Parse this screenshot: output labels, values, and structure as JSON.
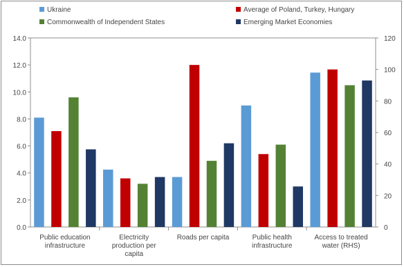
{
  "chart_data": {
    "type": "bar",
    "categories": [
      [
        "Public education",
        "infrastructure"
      ],
      [
        "Electricity",
        "production per",
        "capita"
      ],
      [
        "Roads per capita"
      ],
      [
        "Public health",
        "infrastructure"
      ],
      [
        "Access to treated",
        "water (RHS)"
      ]
    ],
    "series": [
      {
        "name": "Ukraine",
        "color": "#5B9BD5",
        "values": [
          8.1,
          4.25,
          3.7,
          9.0,
          98
        ]
      },
      {
        "name": "Average of Poland, Turkey, Hungary",
        "color": "#C00000",
        "values": [
          7.1,
          3.6,
          12.0,
          5.4,
          100
        ]
      },
      {
        "name": "Commonwealth of Independent States",
        "color": "#548235",
        "values": [
          9.6,
          3.2,
          4.9,
          6.1,
          90
        ]
      },
      {
        "name": "Emerging Market Economies",
        "color": "#1F3864",
        "values": [
          5.75,
          3.7,
          6.2,
          3.0,
          93
        ]
      }
    ],
    "rhs_category_index": 4,
    "ylim_left": [
      0,
      14
    ],
    "ylim_right": [
      0,
      120
    ],
    "left_ticks": [
      "0.0",
      "2.0",
      "4.0",
      "6.0",
      "8.0",
      "10.0",
      "12.0",
      "14.0"
    ],
    "right_ticks": [
      "0",
      "20",
      "40",
      "60",
      "80",
      "100",
      "120"
    ],
    "legend_position": "top",
    "grid": false
  }
}
